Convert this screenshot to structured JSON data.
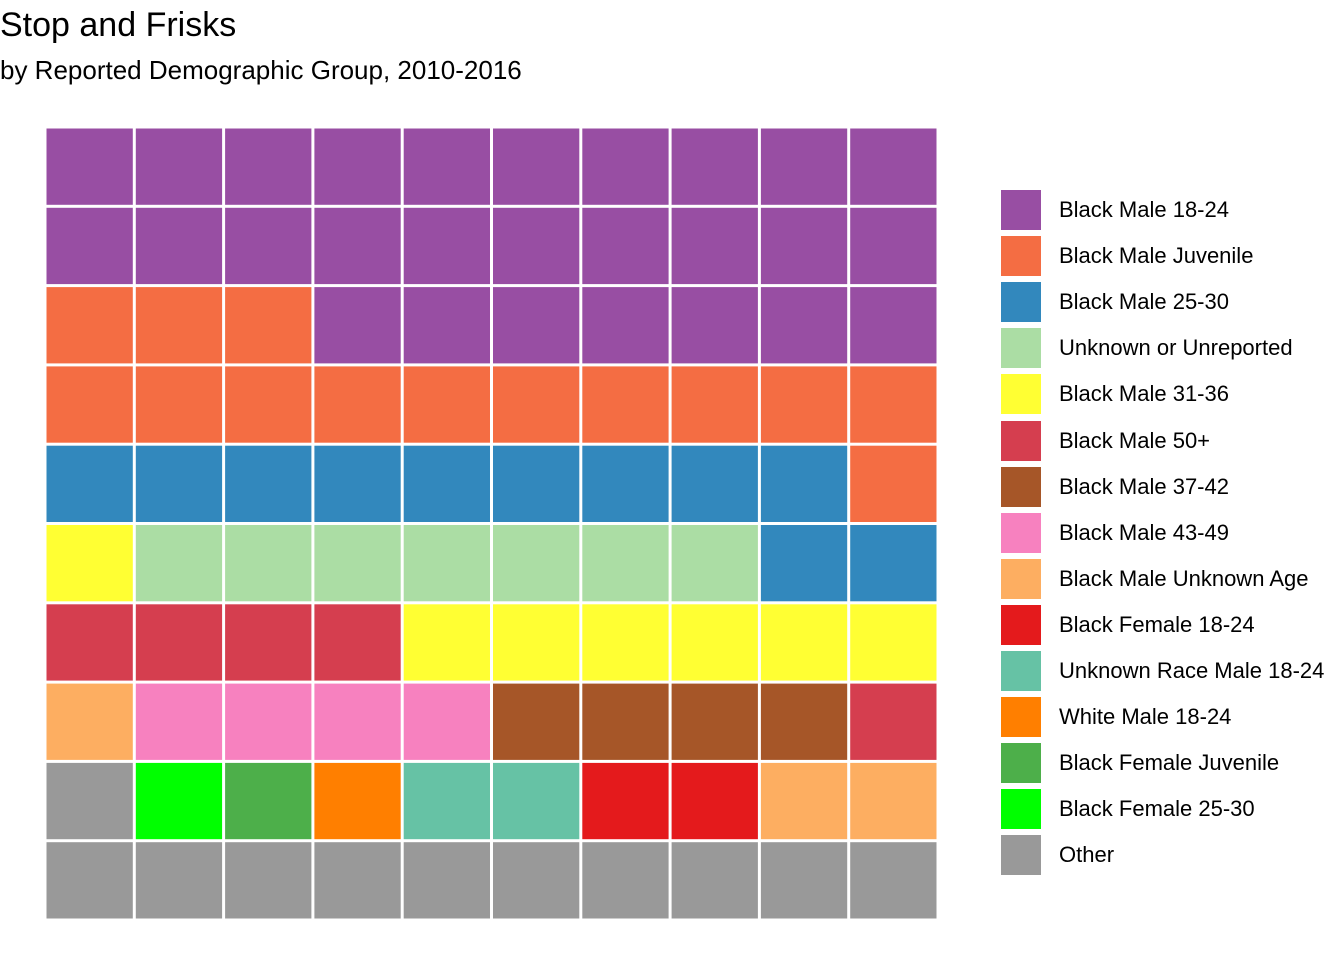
{
  "chart_data": {
    "type": "waffle",
    "title": "Stop and Frisks",
    "subtitle": "by Reported Demographic Group, 2010-2016",
    "grid": {
      "rows": 10,
      "cols": 10
    },
    "unit": "percent",
    "legend_position": "right",
    "categories": [
      {
        "name": "Black Male 18-24",
        "value": 27,
        "color": "#984EA3"
      },
      {
        "name": "Black Male Juvenile",
        "value": 14,
        "color": "#F46D43"
      },
      {
        "name": "Black Male 25-30",
        "value": 11,
        "color": "#3288BD"
      },
      {
        "name": "Unknown or Unreported",
        "value": 7,
        "color": "#ABDDA4"
      },
      {
        "name": "Black Male 31-36",
        "value": 7,
        "color": "#FFFF33"
      },
      {
        "name": "Black Male 50+",
        "value": 5,
        "color": "#D53E4F"
      },
      {
        "name": "Black Male 37-42",
        "value": 4,
        "color": "#A65628"
      },
      {
        "name": "Black Male 43-49",
        "value": 4,
        "color": "#F781BF"
      },
      {
        "name": "Black Male Unknown Age",
        "value": 3,
        "color": "#FDAE61"
      },
      {
        "name": "Black Female 18-24",
        "value": 2,
        "color": "#E41A1C"
      },
      {
        "name": "Unknown Race Male 18-24",
        "value": 2,
        "color": "#66C2A5"
      },
      {
        "name": "White Male 18-24",
        "value": 1,
        "color": "#FF7F00"
      },
      {
        "name": "Black Female Juvenile",
        "value": 1,
        "color": "#4DAF4A"
      },
      {
        "name": "Black Female 25-30",
        "value": 1,
        "color": "#00FF00"
      },
      {
        "name": "Other",
        "value": 11,
        "color": "#999999"
      }
    ]
  }
}
